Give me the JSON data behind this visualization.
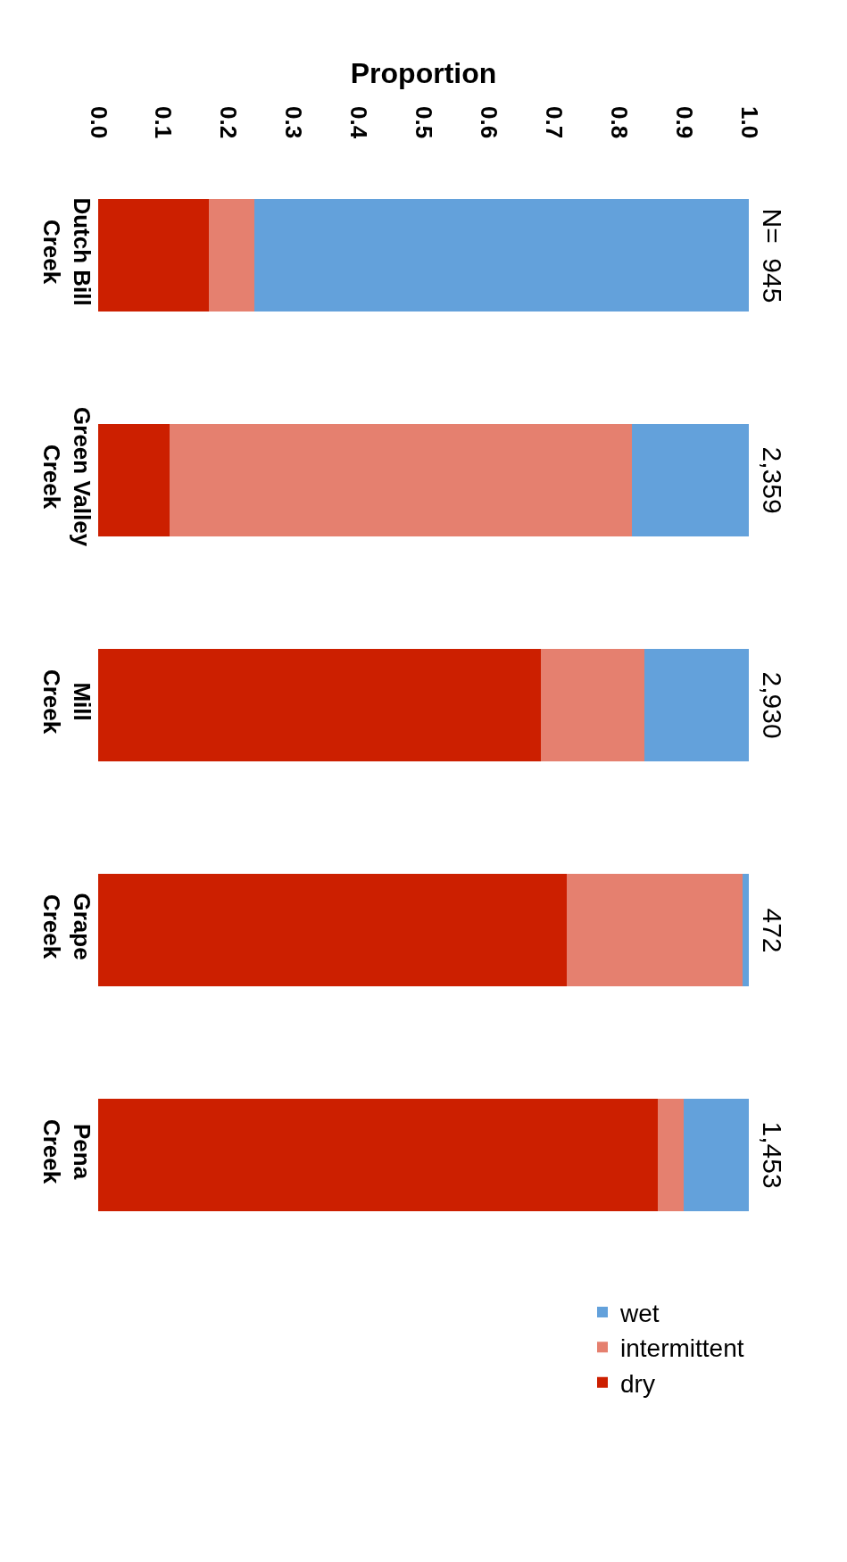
{
  "chart_data": {
    "type": "bar",
    "orientation": "horizontal",
    "stacked": true,
    "xlabel": "Proportion",
    "categories": [
      "Dutch Bill Creek",
      "Green Valley Creek",
      "Mill Creek",
      "Grape Creek",
      "Pena Creek"
    ],
    "series": [
      {
        "name": "dry",
        "color": "#cc1f00",
        "values": [
          0.17,
          0.11,
          0.68,
          0.72,
          0.86
        ]
      },
      {
        "name": "intermittent",
        "color": "#e5806f",
        "values": [
          0.07,
          0.71,
          0.16,
          0.27,
          0.04
        ]
      },
      {
        "name": "wet",
        "color": "#63a1db",
        "values": [
          0.76,
          0.18,
          0.16,
          0.01,
          0.1
        ]
      }
    ],
    "xlim": [
      0,
      1.0
    ],
    "xticks": [
      {
        "value": 0,
        "label": "0.0"
      },
      0.1,
      0.2,
      0.3,
      0.4,
      0.5,
      0.6,
      0.7,
      0.8,
      0.9,
      {
        "value": 1,
        "label": "1.0"
      }
    ],
    "annotations": [
      "N=  945",
      "2,359",
      "2,930",
      "472",
      "1,453"
    ],
    "legend": "bottom right"
  }
}
